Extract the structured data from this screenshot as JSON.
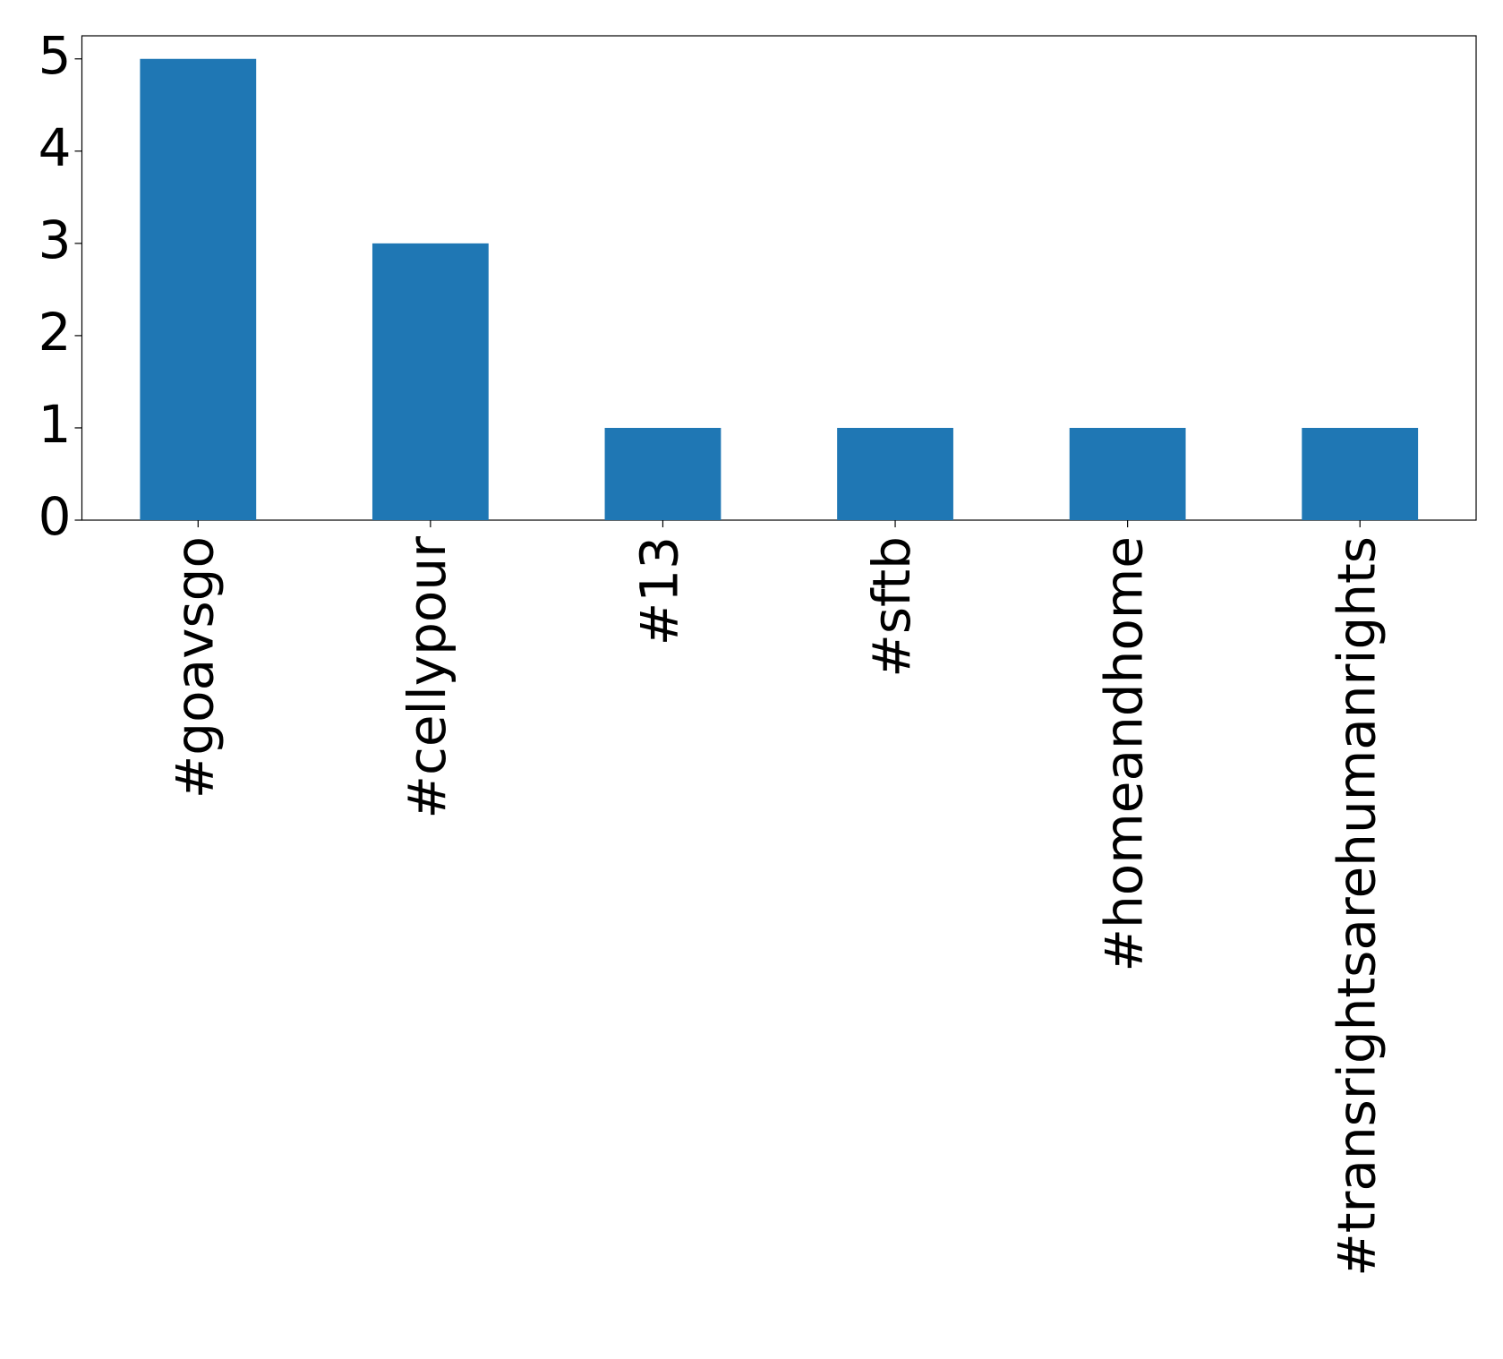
{
  "chart_data": {
    "type": "bar",
    "categories": [
      "#goavsgo",
      "#cellypour",
      "#13",
      "#sftb",
      "#homeandhome",
      "#transrightsarehumanrights"
    ],
    "values": [
      5,
      3,
      1,
      1,
      1,
      1
    ],
    "color": "#1f77b4",
    "ylim": [
      0,
      5.25
    ],
    "yticks": [
      0,
      1,
      2,
      3,
      4,
      5
    ],
    "grid": false
  }
}
